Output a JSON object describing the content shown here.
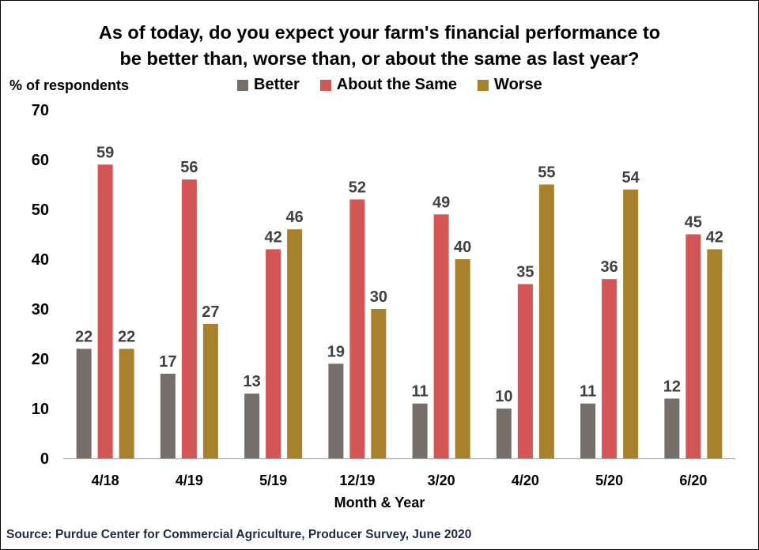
{
  "title_lines": [
    "As of today, do you expect your farm's financial performance to",
    "be better than, worse than, or about the same as last year?"
  ],
  "source": "Source: Purdue Center for Commercial Agriculture, Producer Survey, June 2020",
  "chart_data": {
    "type": "bar",
    "ylabel": "% of respondents",
    "xlabel": "Month & Year",
    "ylim": [
      0,
      70
    ],
    "yticks": [
      0,
      10,
      20,
      30,
      40,
      50,
      60,
      70
    ],
    "categories": [
      "4/18",
      "4/19",
      "5/19",
      "12/19",
      "3/20",
      "4/20",
      "5/20",
      "6/20"
    ],
    "series": [
      {
        "name": "Better",
        "color": "#766f69",
        "values": [
          22,
          17,
          13,
          19,
          11,
          10,
          11,
          12
        ]
      },
      {
        "name": "About the Same",
        "color": "#d45556",
        "values": [
          59,
          56,
          42,
          52,
          49,
          35,
          36,
          45
        ]
      },
      {
        "name": "Worse",
        "color": "#a8812c",
        "values": [
          22,
          27,
          46,
          30,
          40,
          55,
          54,
          42
        ]
      }
    ],
    "legend_position": "top",
    "grid": false
  }
}
